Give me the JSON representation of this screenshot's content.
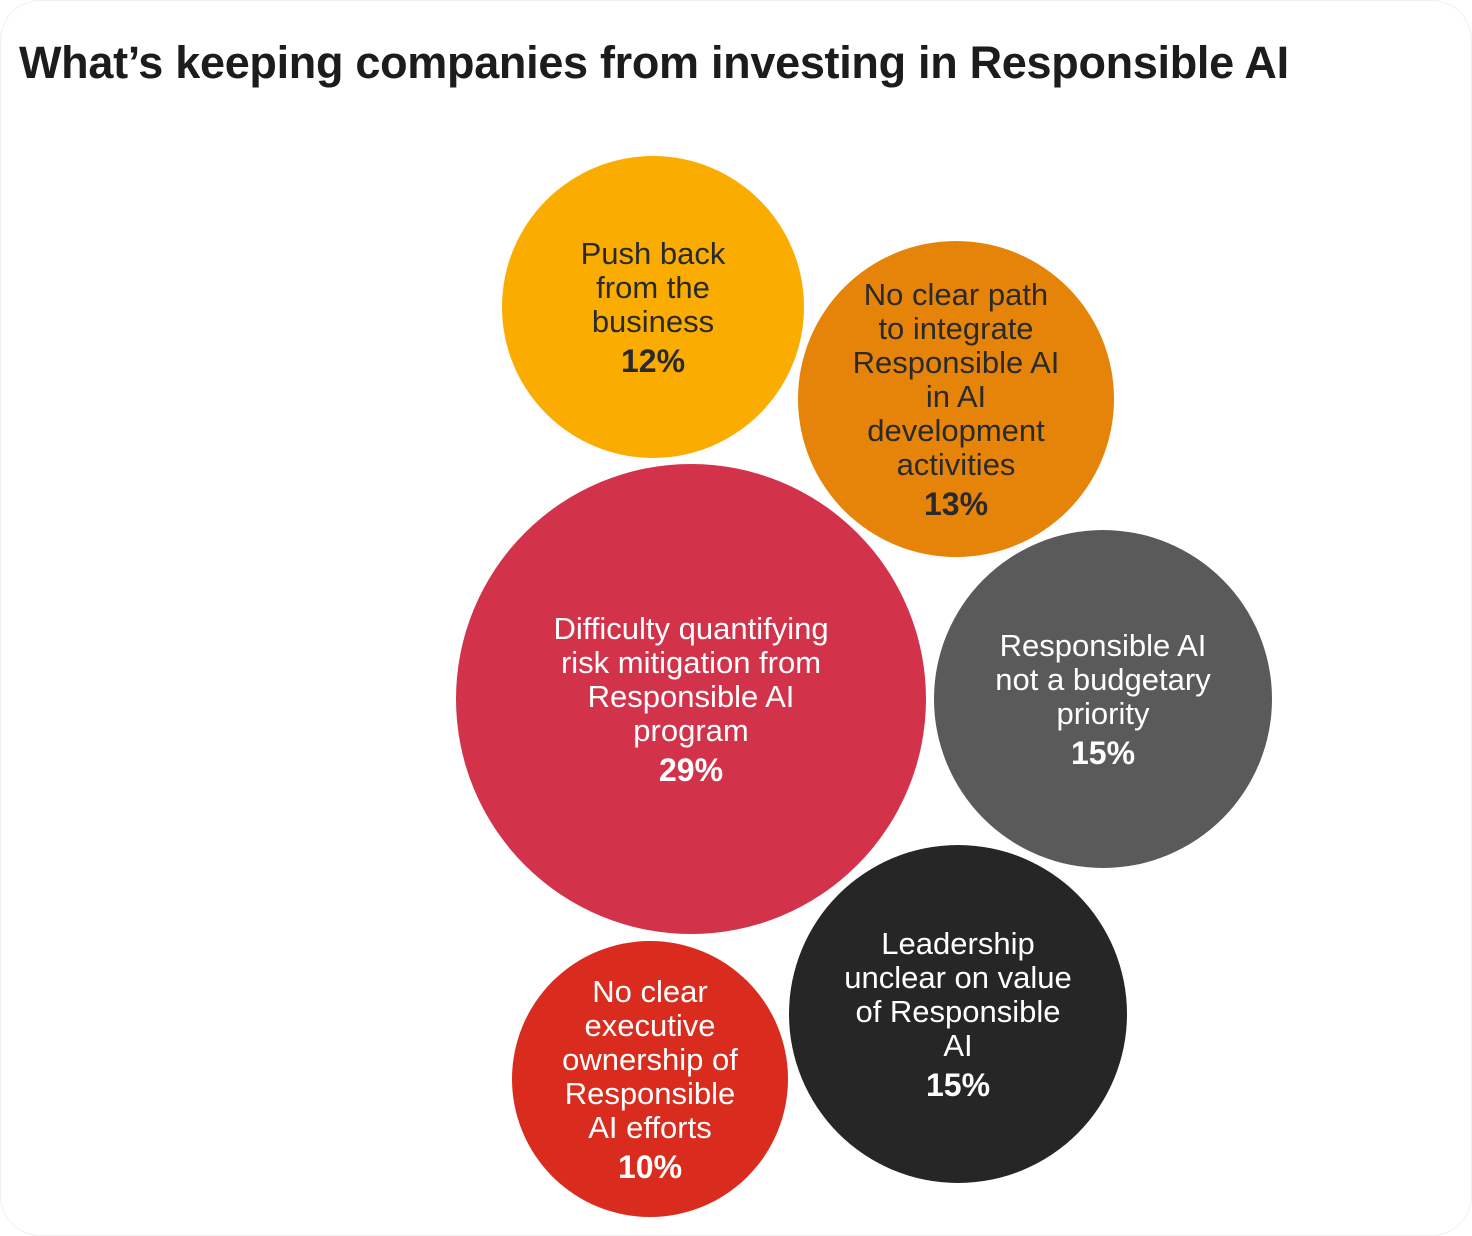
{
  "title": "What’s keeping companies from investing in Responsible AI",
  "chart_data": {
    "type": "bubble",
    "title": "What’s keeping companies from investing in Responsible AI",
    "unit": "%",
    "items": [
      {
        "label_lines": [
          "Push back",
          "from the",
          "business"
        ],
        "value": 12,
        "value_label": "12%",
        "color": "#fbac00",
        "text_color": "#2a2a2a"
      },
      {
        "label_lines": [
          "No clear path",
          "to integrate",
          "Responsible AI",
          "in AI",
          "development",
          "activities"
        ],
        "value": 13,
        "value_label": "13%",
        "color": "#e6840a",
        "text_color": "#2a2a2a"
      },
      {
        "label_lines": [
          "Difficulty quantifying",
          "risk mitigation from",
          "Responsible AI",
          "program"
        ],
        "value": 29,
        "value_label": "29%",
        "color": "#d2334a",
        "text_color": "#ffffff"
      },
      {
        "label_lines": [
          "Responsible AI",
          "not a budgetary",
          "priority"
        ],
        "value": 15,
        "value_label": "15%",
        "color": "#5a5a5a",
        "text_color": "#ffffff"
      },
      {
        "label_lines": [
          "Leadership",
          "unclear on value",
          "of Responsible",
          "AI"
        ],
        "value": 15,
        "value_label": "15%",
        "color": "#262626",
        "text_color": "#ffffff"
      },
      {
        "label_lines": [
          "No clear",
          "executive",
          "ownership of",
          "Responsible",
          "AI efforts"
        ],
        "value": 10,
        "value_label": "10%",
        "color": "#d92c1e",
        "text_color": "#ffffff"
      }
    ]
  }
}
